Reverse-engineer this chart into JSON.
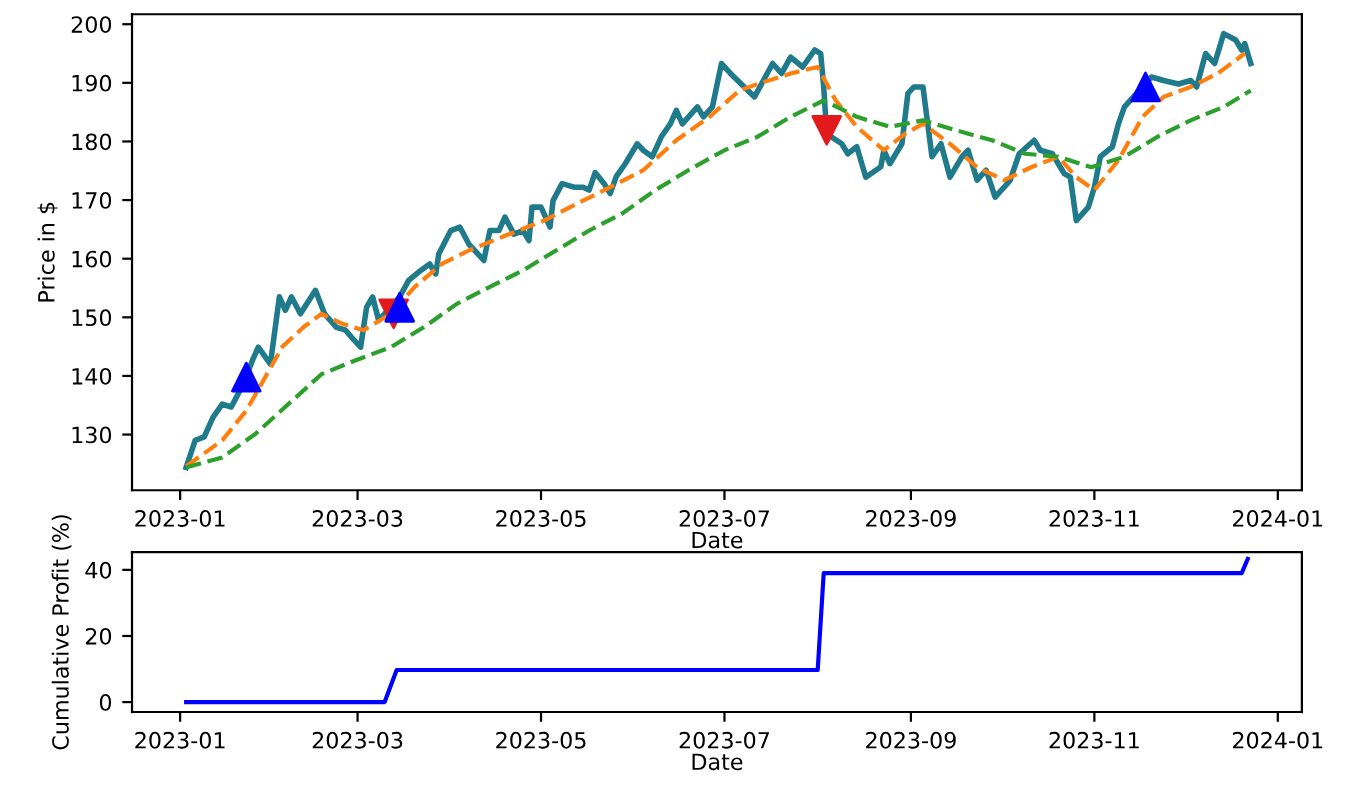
{
  "chart_data": [
    {
      "type": "line",
      "xlabel": "Date",
      "ylabel": "Price in $",
      "xlim": [
        "2022-12-16",
        "2024-01-09"
      ],
      "ylim": [
        120.5,
        201.7
      ],
      "xticks": [
        {
          "value": "2023-01-01",
          "label": "2023-01"
        },
        {
          "value": "2023-03-01",
          "label": "2023-03"
        },
        {
          "value": "2023-05-01",
          "label": "2023-05"
        },
        {
          "value": "2023-07-01",
          "label": "2023-07"
        },
        {
          "value": "2023-09-01",
          "label": "2023-09"
        },
        {
          "value": "2023-11-01",
          "label": "2023-11"
        },
        {
          "value": "2024-01-01",
          "label": "2024-01"
        }
      ],
      "yticks": [
        130,
        140,
        150,
        160,
        170,
        180,
        190,
        200
      ],
      "grid": false,
      "legend": false,
      "series": [
        {
          "type": "line",
          "color": "#1f7a8c",
          "line_style": "solid",
          "x": [
            "2023-01-03",
            "2023-01-06",
            "2023-01-09",
            "2023-01-12",
            "2023-01-15",
            "2023-01-18",
            "2023-01-22",
            "2023-01-25",
            "2023-01-27",
            "2023-01-31",
            "2023-02-03",
            "2023-02-05",
            "2023-02-07",
            "2023-02-10",
            "2023-02-15",
            "2023-02-18",
            "2023-02-22",
            "2023-02-25",
            "2023-02-27",
            "2023-03-02",
            "2023-03-04",
            "2023-03-06",
            "2023-03-08",
            "2023-03-10",
            "2023-03-15",
            "2023-03-18",
            "2023-03-22",
            "2023-03-25",
            "2023-03-27",
            "2023-03-28",
            "2023-04-01",
            "2023-04-04",
            "2023-04-07",
            "2023-04-12",
            "2023-04-14",
            "2023-04-17",
            "2023-04-19",
            "2023-04-22",
            "2023-04-25",
            "2023-04-27",
            "2023-04-28",
            "2023-05-01",
            "2023-05-04",
            "2023-05-05",
            "2023-05-08",
            "2023-05-12",
            "2023-05-15",
            "2023-05-17",
            "2023-05-19",
            "2023-05-22",
            "2023-05-24",
            "2023-05-26",
            "2023-05-29",
            "2023-06-02",
            "2023-06-04",
            "2023-06-07",
            "2023-06-10",
            "2023-06-13",
            "2023-06-15",
            "2023-06-17",
            "2023-06-22",
            "2023-06-24",
            "2023-06-27",
            "2023-06-30",
            "2023-07-03",
            "2023-07-11",
            "2023-07-17",
            "2023-07-20",
            "2023-07-23",
            "2023-07-27",
            "2023-07-31",
            "2023-08-02",
            "2023-08-03",
            "2023-08-04",
            "2023-08-09",
            "2023-08-11",
            "2023-08-14",
            "2023-08-17",
            "2023-08-22",
            "2023-08-23",
            "2023-08-25",
            "2023-08-29",
            "2023-08-31",
            "2023-09-02",
            "2023-09-05",
            "2023-09-08",
            "2023-09-11",
            "2023-09-14",
            "2023-09-18",
            "2023-09-20",
            "2023-09-23",
            "2023-09-26",
            "2023-09-29",
            "2023-10-02",
            "2023-10-04",
            "2023-10-07",
            "2023-10-12",
            "2023-10-14",
            "2023-10-18",
            "2023-10-22",
            "2023-10-24",
            "2023-10-26",
            "2023-10-30",
            "2023-11-01",
            "2023-11-03",
            "2023-11-07",
            "2023-11-09",
            "2023-11-11",
            "2023-11-14",
            "2023-11-20",
            "2023-11-24",
            "2023-11-29",
            "2023-12-03",
            "2023-12-05",
            "2023-12-08",
            "2023-12-11",
            "2023-12-14",
            "2023-12-18",
            "2023-12-20",
            "2023-12-21",
            "2023-12-23"
          ],
          "values": [
            124.4,
            129,
            129.6,
            133,
            135.2,
            134.7,
            138.6,
            142.6,
            144.9,
            142,
            153.5,
            151.2,
            153.5,
            150.6,
            154.6,
            150.6,
            148.3,
            147.8,
            146.6,
            144.9,
            151.7,
            153.5,
            149.5,
            150.6,
            153.5,
            156.3,
            158,
            159.1,
            157.4,
            160.8,
            164.8,
            165.4,
            162.5,
            159.7,
            164.8,
            164.8,
            167.1,
            164.2,
            164.8,
            163.1,
            168.8,
            168.8,
            165.4,
            169.9,
            172.8,
            172.2,
            172.2,
            171.7,
            174.7,
            172.8,
            171.1,
            174,
            176.2,
            179.6,
            178.5,
            177.4,
            180.8,
            183,
            185.3,
            183,
            185.9,
            184.2,
            185.9,
            193.3,
            191.6,
            187.6,
            193.3,
            191.6,
            194.4,
            192.7,
            195.6,
            195,
            189.3,
            181.3,
            179.6,
            177.9,
            179.1,
            173.9,
            175.7,
            178.5,
            176.2,
            179.6,
            188.2,
            189.3,
            189.3,
            177.4,
            179.6,
            173.9,
            177.4,
            178.5,
            173.4,
            175.1,
            170.5,
            172.2,
            173.4,
            177.9,
            180.2,
            178.5,
            177.9,
            174.5,
            173.9,
            166.5,
            168.8,
            172.2,
            177.4,
            179.1,
            183,
            185.9,
            187.6,
            191,
            190.4,
            189.8,
            190.4,
            189.3,
            195,
            193.3,
            198.4,
            197.3,
            195.6,
            196.7,
            193.3
          ]
        },
        {
          "type": "line",
          "color": "#ff7f0e",
          "line_style": "dashed",
          "x": [
            "2023-01-03",
            "2023-01-15",
            "2023-01-23",
            "2023-01-28",
            "2023-02-04",
            "2023-02-11",
            "2023-02-17",
            "2023-02-24",
            "2023-03-03",
            "2023-03-12",
            "2023-03-20",
            "2023-03-29",
            "2023-04-07",
            "2023-04-18",
            "2023-05-02",
            "2023-05-13",
            "2023-05-24",
            "2023-06-04",
            "2023-06-15",
            "2023-06-26",
            "2023-07-06",
            "2023-07-12",
            "2023-07-23",
            "2023-08-01",
            "2023-08-07",
            "2023-08-14",
            "2023-08-23",
            "2023-08-30",
            "2023-09-05",
            "2023-09-14",
            "2023-09-23",
            "2023-10-02",
            "2023-10-11",
            "2023-10-20",
            "2023-10-26",
            "2023-11-01",
            "2023-11-09",
            "2023-11-17",
            "2023-11-24",
            "2023-12-03",
            "2023-12-12",
            "2023-12-21"
          ],
          "values": [
            124.6,
            129,
            134.1,
            138.6,
            145,
            148.3,
            150.6,
            148.9,
            147.8,
            150.6,
            155.2,
            159.1,
            161.4,
            163.7,
            166.5,
            169.4,
            172.2,
            175.1,
            180.2,
            184.2,
            188.7,
            189.8,
            191.6,
            192.7,
            187,
            182.5,
            178.5,
            181.3,
            183,
            179.6,
            175.6,
            173.4,
            175.6,
            177.4,
            173.9,
            171.7,
            176.8,
            184.2,
            187.6,
            189.3,
            191.6,
            195
          ]
        },
        {
          "type": "line",
          "color": "#2ca02c",
          "line_style": "dashed",
          "x": [
            "2023-01-03",
            "2023-01-15",
            "2023-01-26",
            "2023-02-06",
            "2023-02-17",
            "2023-02-28",
            "2023-03-12",
            "2023-03-23",
            "2023-04-03",
            "2023-04-14",
            "2023-04-25",
            "2023-05-06",
            "2023-05-17",
            "2023-05-28",
            "2023-06-08",
            "2023-06-19",
            "2023-07-01",
            "2023-07-12",
            "2023-07-23",
            "2023-08-03",
            "2023-08-14",
            "2023-08-25",
            "2023-09-05",
            "2023-09-16",
            "2023-09-28",
            "2023-10-09",
            "2023-10-20",
            "2023-10-31",
            "2023-11-11",
            "2023-11-22",
            "2023-12-03",
            "2023-12-14",
            "2023-12-23"
          ],
          "values": [
            124.4,
            126.1,
            130.1,
            135.2,
            140.3,
            142.6,
            144.9,
            148.3,
            152.3,
            155.2,
            158,
            161.4,
            164.8,
            167.7,
            171.7,
            175.1,
            178.5,
            180.8,
            184.2,
            187,
            184.2,
            182.5,
            183.6,
            181.9,
            180.2,
            177.9,
            177.4,
            175.6,
            177.4,
            180.8,
            183.6,
            185.9,
            188.7
          ]
        },
        {
          "type": "scatter",
          "color": "#e31a1c",
          "marker": "triangle_down",
          "x": [
            "2023-03-13",
            "2023-08-04"
          ],
          "values": [
            150.6,
            181.9
          ]
        },
        {
          "type": "scatter",
          "color": "#0000ff",
          "marker": "triangle",
          "x": [
            "2023-01-23",
            "2023-03-15",
            "2023-11-18"
          ],
          "values": [
            139.8,
            151.7,
            189.3
          ]
        }
      ]
    },
    {
      "type": "line",
      "xlabel": "Date",
      "ylabel": "Cumulative Profit (%)",
      "xlim": [
        "2022-12-16",
        "2024-01-09"
      ],
      "ylim": [
        -3,
        45.4
      ],
      "xticks": [
        {
          "value": "2023-01-01",
          "label": "2023-01"
        },
        {
          "value": "2023-03-01",
          "label": "2023-03"
        },
        {
          "value": "2023-05-01",
          "label": "2023-05"
        },
        {
          "value": "2023-07-01",
          "label": "2023-07"
        },
        {
          "value": "2023-09-01",
          "label": "2023-09"
        },
        {
          "value": "2023-11-01",
          "label": "2023-11"
        },
        {
          "value": "2024-01-01",
          "label": "2024-01"
        }
      ],
      "yticks": [
        0,
        20,
        40
      ],
      "grid": false,
      "legend": false,
      "series": [
        {
          "type": "line",
          "color": "#0000ff",
          "line_style": "solid",
          "x": [
            "2023-01-03",
            "2023-03-10",
            "2023-03-14",
            "2023-08-01",
            "2023-08-03",
            "2023-12-20",
            "2023-12-22"
          ],
          "values": [
            0,
            0,
            9.7,
            9.7,
            39,
            39,
            43.3
          ]
        }
      ]
    }
  ]
}
